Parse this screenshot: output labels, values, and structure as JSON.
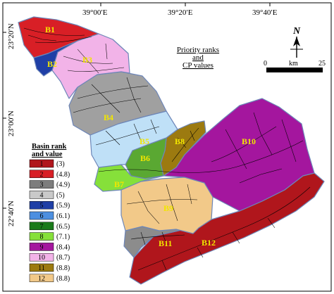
{
  "latitudes": [
    "23°20′N",
    "23°00′N",
    "22°40′N"
  ],
  "longitudes": [
    "39°00′E",
    "39°20′E",
    "39°40′E"
  ],
  "title_lines": [
    "Priority ranks",
    "and",
    "CP values"
  ],
  "north_label": "N",
  "scale_bar": {
    "start": "0",
    "unit": "km",
    "end": "25"
  },
  "legend": {
    "title_lines": [
      "Basin rank",
      "and value"
    ],
    "items": [
      {
        "rank": "1",
        "value": "(3)",
        "color": "#b0161c"
      },
      {
        "rank": "2",
        "value": "(4.8)",
        "color": "#d81f26"
      },
      {
        "rank": "3",
        "value": "(4.9)",
        "color": "#7d7d7d"
      },
      {
        "rank": "4",
        "value": "(5)",
        "color": "#c9c9c9"
      },
      {
        "rank": "5",
        "value": "(5.9)",
        "color": "#1f3fa6"
      },
      {
        "rank": "6",
        "value": "(6.1)",
        "color": "#4d8fe0"
      },
      {
        "rank": "7",
        "value": "(6.5)",
        "color": "#1a7a1a"
      },
      {
        "rank": "8",
        "value": "(7.1)",
        "color": "#86e03a"
      },
      {
        "rank": "9",
        "value": "(8.4)",
        "color": "#a4169e"
      },
      {
        "rank": "10",
        "value": "(8.7)",
        "color": "#f2b3e8"
      },
      {
        "rank": "11",
        "value": "(8.8)",
        "color": "#9c7a10"
      },
      {
        "rank": "12",
        "value": "(8.8)",
        "color": "#f2c989"
      }
    ]
  },
  "basins": [
    {
      "id": "B1",
      "label": "B1",
      "color": "#d81f26"
    },
    {
      "id": "B2",
      "label": "B2",
      "color": "#1f3fa6"
    },
    {
      "id": "B3",
      "label": "B3",
      "color": "#f2b3e8"
    },
    {
      "id": "B4",
      "label": "B4",
      "color": "#a0a0a0"
    },
    {
      "id": "B5",
      "label": "B5",
      "color": "#bfe0f7"
    },
    {
      "id": "B6",
      "label": "B6",
      "color": "#5aa832"
    },
    {
      "id": "B7",
      "label": "B7",
      "color": "#86e03a"
    },
    {
      "id": "B8",
      "label": "B8",
      "color": "#9c7a10"
    },
    {
      "id": "B9",
      "label": "B9",
      "color": "#f2c989"
    },
    {
      "id": "B10",
      "label": "B10",
      "color": "#a4169e"
    },
    {
      "id": "B11",
      "label": "B11",
      "color": "#8c8c8c"
    },
    {
      "id": "B12",
      "label": "B12",
      "color": "#b0161c"
    }
  ]
}
